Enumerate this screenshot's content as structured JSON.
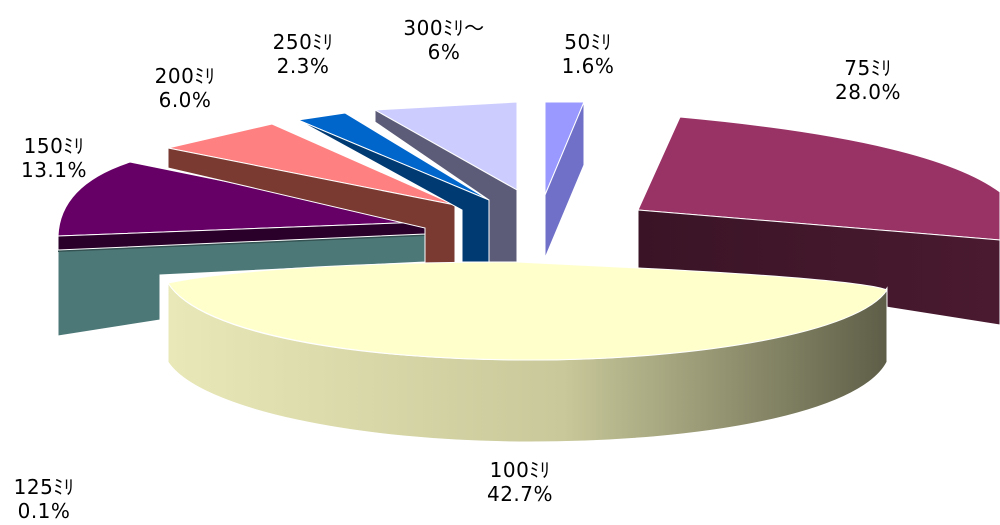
{
  "chart_data": {
    "type": "pie",
    "style": "3d-exploded",
    "legend": "none",
    "slices": [
      {
        "label": "50ﾐﾘ",
        "percent_label": "1.6%",
        "value": 1.6,
        "color": "#9999ff"
      },
      {
        "label": "75ﾐﾘ",
        "percent_label": "28.0%",
        "value": 28.0,
        "color": "#993366"
      },
      {
        "label": "100ﾐﾘ",
        "percent_label": "42.7%",
        "value": 42.7,
        "color": "#ffffcc"
      },
      {
        "label": "125ﾐﾘ",
        "percent_label": "0.1%",
        "value": 0.1,
        "color": "#4d7878"
      },
      {
        "label": "150ﾐﾘ",
        "percent_label": "13.1%",
        "value": 13.1,
        "color": "#660066"
      },
      {
        "label": "200ﾐﾘ",
        "percent_label": "6.0%",
        "value": 6.0,
        "color": "#ff8080"
      },
      {
        "label": "250ﾐﾘ",
        "percent_label": "2.3%",
        "value": 2.3,
        "color": "#0066cc"
      },
      {
        "label": "300ﾐﾘ〜",
        "percent_label": "6%",
        "value": 6.0,
        "color": "#ccccff"
      }
    ]
  }
}
